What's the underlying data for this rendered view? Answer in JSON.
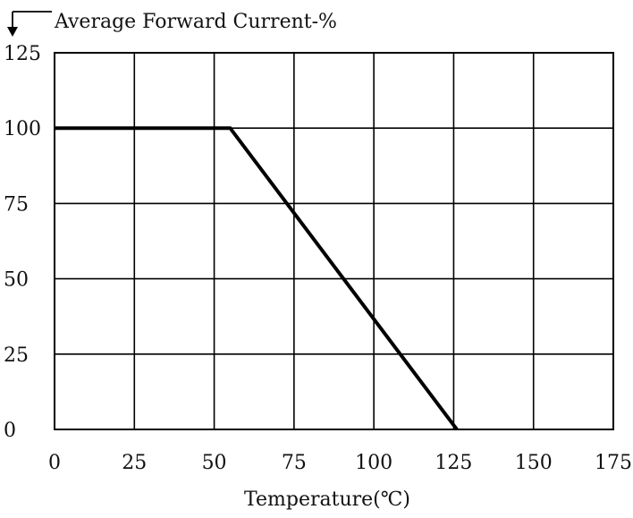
{
  "chart_data": {
    "type": "line",
    "title": "",
    "ylabel": "Average Forward Current-%",
    "xlabel": "Temperature(℃)",
    "xlim": [
      0,
      175
    ],
    "ylim": [
      0,
      125
    ],
    "xticks": [
      0,
      25,
      50,
      75,
      100,
      125,
      150,
      175
    ],
    "yticks": [
      0,
      25,
      50,
      75,
      100,
      125
    ],
    "grid": true,
    "series": [
      {
        "x": [
          0,
          55,
          126
        ],
        "y": [
          100,
          100,
          0
        ],
        "color": "#000000"
      }
    ]
  }
}
